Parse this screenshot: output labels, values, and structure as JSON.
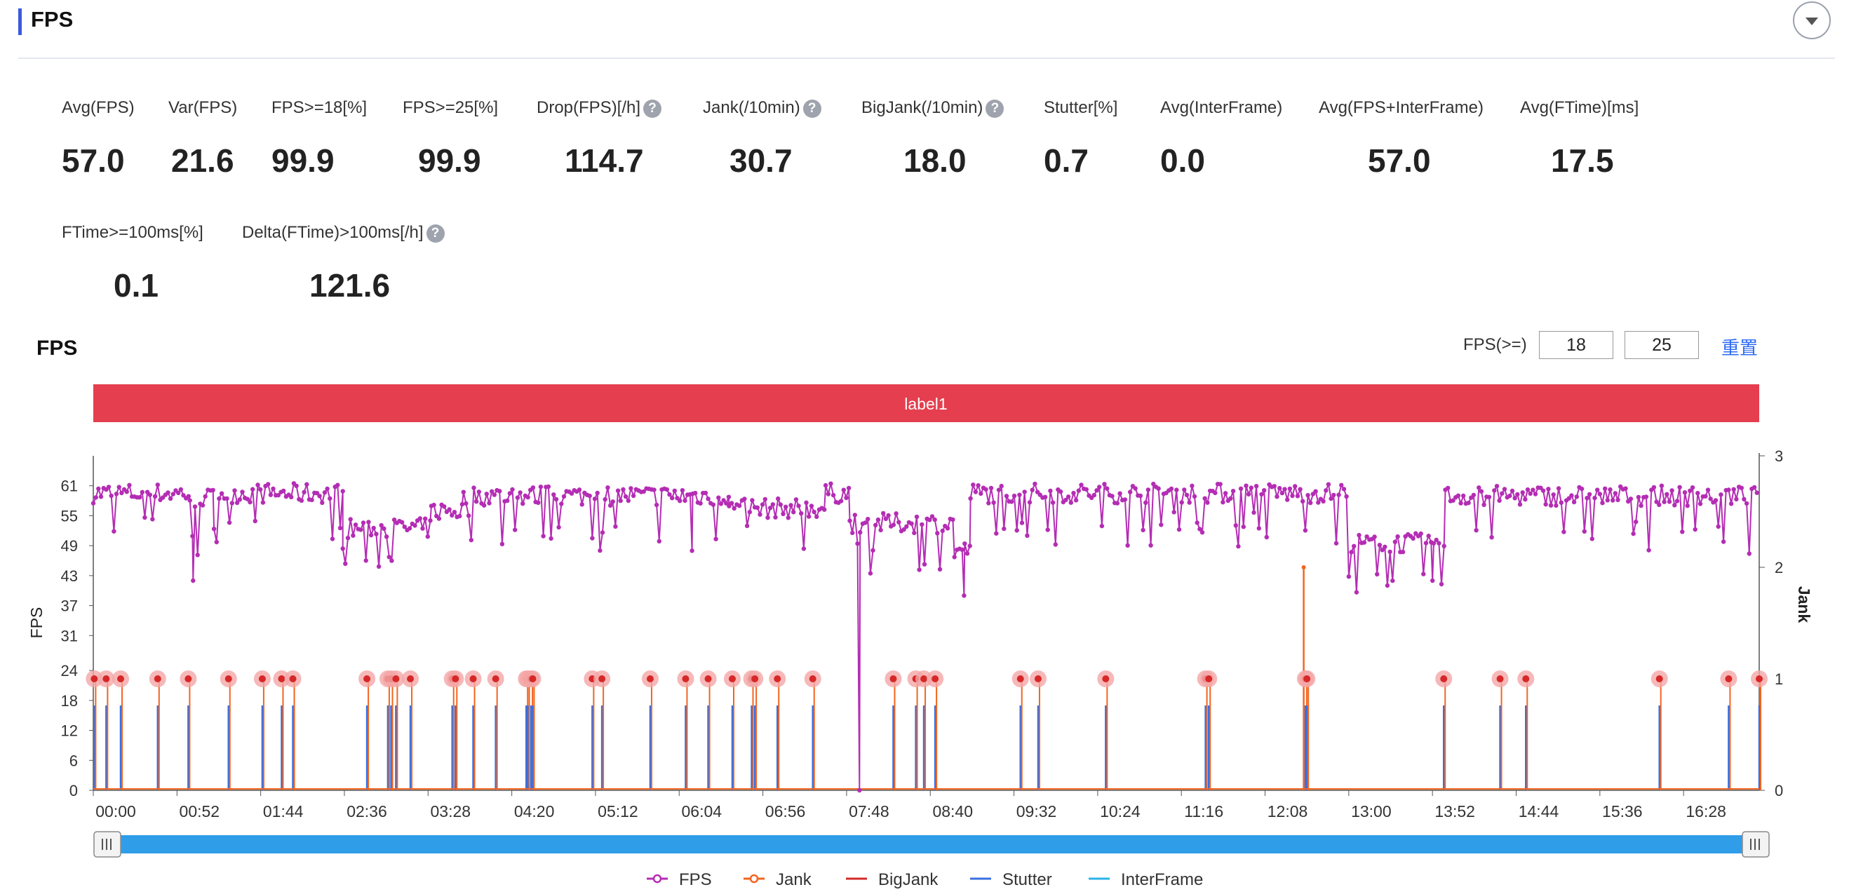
{
  "header": {
    "title": "FPS"
  },
  "metrics": [
    {
      "label": "Avg(FPS)",
      "value": "57.0",
      "help": false
    },
    {
      "label": "Var(FPS)",
      "value": "21.6",
      "help": false
    },
    {
      "label": "FPS>=18[%]",
      "value": "99.9",
      "help": false
    },
    {
      "label": "FPS>=25[%]",
      "value": "99.9",
      "help": false
    },
    {
      "label": "Drop(FPS)[/h]",
      "value": "114.7",
      "help": true
    },
    {
      "label": "Jank(/10min)",
      "value": "30.7",
      "help": true
    },
    {
      "label": "BigJank(/10min)",
      "value": "18.0",
      "help": true
    },
    {
      "label": "Stutter[%]",
      "value": "0.7",
      "help": false
    },
    {
      "label": "Avg(InterFrame)",
      "value": "0.0",
      "help": false
    },
    {
      "label": "Avg(FPS+InterFrame)",
      "value": "57.0",
      "help": false
    },
    {
      "label": "Avg(FTime)[ms]",
      "value": "17.5",
      "help": false
    },
    {
      "label": "FTime>=100ms[%]",
      "value": "0.1",
      "help": false
    },
    {
      "label": "Delta(FTime)>100ms[/h]",
      "value": "121.6",
      "help": true
    }
  ],
  "help_glyph": "?",
  "chart_section": {
    "title": "FPS",
    "threshold_label": "FPS(>=)",
    "threshold_low": "18",
    "threshold_high": "25",
    "reset_label": "重置"
  },
  "chart_data": {
    "type": "line",
    "label_bar": "label1",
    "x_ticks": [
      "00:00",
      "00:52",
      "01:44",
      "02:36",
      "03:28",
      "04:20",
      "05:12",
      "06:04",
      "06:56",
      "07:48",
      "08:40",
      "09:32",
      "10:24",
      "11:16",
      "12:08",
      "13:00",
      "13:52",
      "14:44",
      "15:36",
      "16:28"
    ],
    "x_range_minutes": [
      0,
      1035
    ],
    "ylabel": "FPS",
    "y_ticks": [
      0,
      6,
      12,
      18,
      24,
      31,
      37,
      43,
      49,
      55,
      61
    ],
    "ylim": [
      0,
      67
    ],
    "y2label": "Jank",
    "y2_ticks": [
      0,
      1,
      2,
      3
    ],
    "y2lim": [
      0,
      3
    ],
    "legend": [
      {
        "name": "FPS",
        "color": "#b42db4",
        "marker": "circle"
      },
      {
        "name": "Jank",
        "color": "#f2651f",
        "marker": "circle"
      },
      {
        "name": "BigJank",
        "color": "#d62828",
        "marker": "none"
      },
      {
        "name": "Stutter",
        "color": "#3a6fe0",
        "marker": "none"
      },
      {
        "name": "InterFrame",
        "color": "#2bb3e8",
        "marker": "none"
      }
    ],
    "series": [
      {
        "name": "FPS",
        "segments": [
          {
            "t": [
              0,
              60
            ],
            "base": 59.5
          },
          {
            "t": [
              60,
              75
            ],
            "base": 58.5,
            "dip": {
              "at": 62,
              "value": 42
            }
          },
          {
            "t": [
              75,
              155
            ],
            "base": 59.5
          },
          {
            "t": [
              155,
              210
            ],
            "base": 52.5
          },
          {
            "t": [
              210,
              230
            ],
            "base": 56
          },
          {
            "t": [
              230,
              395
            ],
            "base": 59,
            "dip": {
              "at": 372,
              "value": 48
            }
          },
          {
            "t": [
              395,
              455
            ],
            "base": 56.5
          },
          {
            "t": [
              455,
              470
            ],
            "base": 59.5
          },
          {
            "t": [
              470,
              535
            ],
            "base": 53.5,
            "dip": {
              "at": 476,
              "value": 0
            }
          },
          {
            "t": [
              535,
              545
            ],
            "base": 48,
            "dip": {
              "at": 541,
              "value": 39
            }
          },
          {
            "t": [
              545,
              780
            ],
            "base": 59.5
          },
          {
            "t": [
              780,
              840
            ],
            "base": 49.5,
            "dip": {
              "at": 832,
              "value": 42
            }
          },
          {
            "t": [
              840,
              1035
            ],
            "base": 59
          }
        ]
      },
      {
        "name": "Jank",
        "spikes": [
          0.6,
          8,
          17,
          40,
          59,
          84,
          105,
          117,
          124,
          170,
          183,
          185,
          188,
          197,
          223,
          225,
          236,
          250,
          269,
          270,
          272,
          273,
          310,
          316,
          346,
          368,
          382,
          397,
          409,
          411,
          425,
          447,
          497,
          511,
          516,
          523,
          576,
          587,
          629,
          691,
          693,
          753,
          754,
          839,
          874,
          890,
          973,
          1016,
          1035
        ],
        "spike_value": 1,
        "tall": {
          "at": 752,
          "value": 2
        }
      },
      {
        "name": "BigJank",
        "values": []
      },
      {
        "name": "Stutter",
        "spike_value_fps": 17
      },
      {
        "name": "InterFrame",
        "values": []
      }
    ]
  }
}
